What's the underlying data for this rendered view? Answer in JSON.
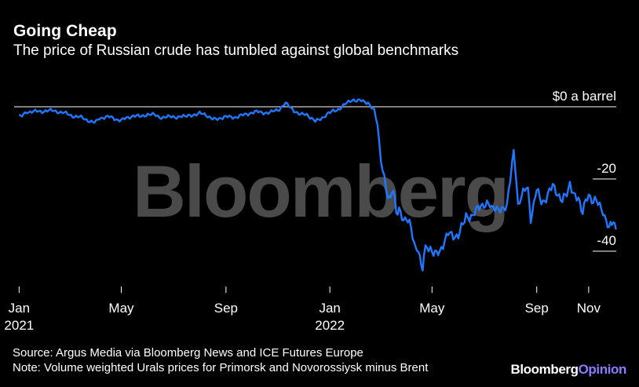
{
  "header": {
    "title": "Going Cheap",
    "subtitle": "The price of Russian crude has tumbled against global benchmarks"
  },
  "footer": {
    "source": "Source: Argus Media via Bloomberg News and ICE Futures Europe",
    "note": "Note: Volume weighted Urals prices for Primorsk and Novorossiysk minus Brent",
    "brand": "Bloomberg",
    "brand_accent": "Opinion"
  },
  "watermark": "Bloomberg",
  "colors": {
    "line": "#1f77ff",
    "background": "#000000",
    "text": "#ffffff"
  },
  "chart_data": {
    "type": "line",
    "title": "Going Cheap",
    "subtitle": "The price of Russian crude has tumbled against global benchmarks",
    "ylabel": "",
    "xlabel": "",
    "ylim": [
      -46,
      2
    ],
    "xlim": [
      "2020-12-28",
      "2022-12-08"
    ],
    "y_ticks": [
      {
        "value": 0,
        "label": "$0 a barrel"
      },
      {
        "value": -20,
        "label": "-20"
      },
      {
        "value": -40,
        "label": "-40"
      }
    ],
    "x_ticks": [
      {
        "date": "2021-01-01",
        "label": "Jan",
        "year": "2021"
      },
      {
        "date": "2021-05-01",
        "label": "May",
        "year": ""
      },
      {
        "date": "2021-09-01",
        "label": "Sep",
        "year": ""
      },
      {
        "date": "2022-01-01",
        "label": "Jan",
        "year": "2022"
      },
      {
        "date": "2022-05-01",
        "label": "May",
        "year": ""
      },
      {
        "date": "2022-09-01",
        "label": "Sep",
        "year": ""
      },
      {
        "date": "2022-11-01",
        "label": "Nov",
        "year": ""
      }
    ],
    "grid": "none",
    "series": [
      {
        "color": "#1f77ff",
        "points": [
          [
            "2021-01-01",
            -2.5
          ],
          [
            "2021-01-10",
            -1.5
          ],
          [
            "2021-01-20",
            -1.2
          ],
          [
            "2021-02-01",
            -1.0
          ],
          [
            "2021-02-15",
            -1.5
          ],
          [
            "2021-03-01",
            -2.0
          ],
          [
            "2021-03-15",
            -3.0
          ],
          [
            "2021-03-25",
            -4.2
          ],
          [
            "2021-04-05",
            -3.2
          ],
          [
            "2021-04-15",
            -3.0
          ],
          [
            "2021-05-01",
            -3.5
          ],
          [
            "2021-05-15",
            -2.5
          ],
          [
            "2021-06-01",
            -2.0
          ],
          [
            "2021-06-15",
            -3.0
          ],
          [
            "2021-07-01",
            -2.5
          ],
          [
            "2021-07-15",
            -3.0
          ],
          [
            "2021-08-01",
            -2.0
          ],
          [
            "2021-08-20",
            -3.5
          ],
          [
            "2021-09-01",
            -3.0
          ],
          [
            "2021-09-15",
            -2.5
          ],
          [
            "2021-10-01",
            -1.8
          ],
          [
            "2021-10-15",
            -1.5
          ],
          [
            "2021-11-01",
            -0.8
          ],
          [
            "2021-11-10",
            0.6
          ],
          [
            "2021-11-20",
            -1.0
          ],
          [
            "2021-12-05",
            -2.2
          ],
          [
            "2021-12-15",
            -4.0
          ],
          [
            "2021-12-25",
            -2.5
          ],
          [
            "2022-01-05",
            -1.0
          ],
          [
            "2022-01-15",
            0.0
          ],
          [
            "2022-01-25",
            1.5
          ],
          [
            "2022-02-05",
            1.7
          ],
          [
            "2022-02-15",
            1.0
          ],
          [
            "2022-02-22",
            -1.0
          ],
          [
            "2022-02-26",
            -5.0
          ],
          [
            "2022-03-02",
            -15.0
          ],
          [
            "2022-03-06",
            -20.0
          ],
          [
            "2022-03-10",
            -26.0
          ],
          [
            "2022-03-15",
            -23.0
          ],
          [
            "2022-03-20",
            -28.0
          ],
          [
            "2022-03-25",
            -30.0
          ],
          [
            "2022-04-01",
            -31.0
          ],
          [
            "2022-04-10",
            -37.0
          ],
          [
            "2022-04-15",
            -41.0
          ],
          [
            "2022-04-20",
            -44.0
          ],
          [
            "2022-04-25",
            -38.0
          ],
          [
            "2022-05-01",
            -40.0
          ],
          [
            "2022-05-10",
            -40.0
          ],
          [
            "2022-05-20",
            -35.0
          ],
          [
            "2022-06-01",
            -35.0
          ],
          [
            "2022-06-10",
            -30.0
          ],
          [
            "2022-06-20",
            -29.0
          ],
          [
            "2022-07-01",
            -26.0
          ],
          [
            "2022-07-10",
            -29.0
          ],
          [
            "2022-07-20",
            -27.0
          ],
          [
            "2022-07-28",
            -28.0
          ],
          [
            "2022-08-05",
            -12.0
          ],
          [
            "2022-08-10",
            -27.0
          ],
          [
            "2022-08-20",
            -22.0
          ],
          [
            "2022-08-25",
            -30.0
          ],
          [
            "2022-09-01",
            -24.0
          ],
          [
            "2022-09-10",
            -26.0
          ],
          [
            "2022-09-20",
            -23.0
          ],
          [
            "2022-10-01",
            -26.0
          ],
          [
            "2022-10-10",
            -21.0
          ],
          [
            "2022-10-20",
            -26.0
          ],
          [
            "2022-10-25",
            -29.0
          ],
          [
            "2022-11-01",
            -24.0
          ],
          [
            "2022-11-10",
            -27.0
          ],
          [
            "2022-11-18",
            -29.0
          ],
          [
            "2022-11-25",
            -34.0
          ],
          [
            "2022-11-30",
            -31.0
          ],
          [
            "2022-12-03",
            -34.0
          ]
        ]
      }
    ]
  }
}
